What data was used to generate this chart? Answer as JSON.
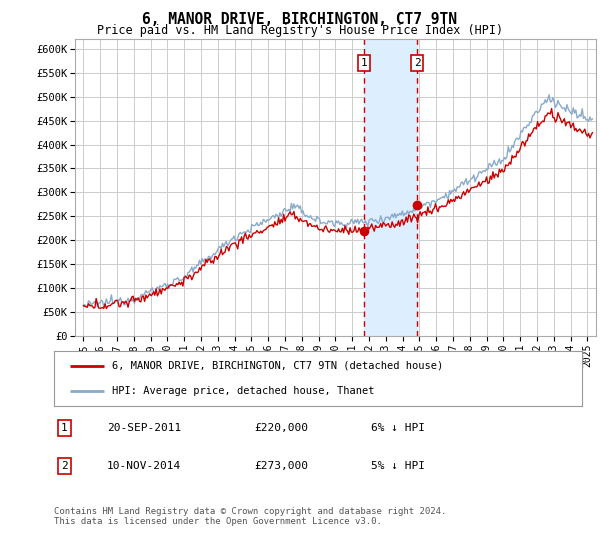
{
  "title": "6, MANOR DRIVE, BIRCHINGTON, CT7 9TN",
  "subtitle": "Price paid vs. HM Land Registry's House Price Index (HPI)",
  "ylabel_ticks": [
    "£0",
    "£50K",
    "£100K",
    "£150K",
    "£200K",
    "£250K",
    "£300K",
    "£350K",
    "£400K",
    "£450K",
    "£500K",
    "£550K",
    "£600K"
  ],
  "ylim": [
    0,
    620000
  ],
  "ytick_values": [
    0,
    50000,
    100000,
    150000,
    200000,
    250000,
    300000,
    350000,
    400000,
    450000,
    500000,
    550000,
    600000
  ],
  "xmin": 1994.5,
  "xmax": 2025.5,
  "sale1_x": 2011.72,
  "sale1_y": 220000,
  "sale2_x": 2014.86,
  "sale2_y": 273000,
  "region_color": "#ddeeff",
  "dashed_color": "#cc0000",
  "red_line_color": "#cc0000",
  "blue_line_color": "#88aacc",
  "legend_line1": "6, MANOR DRIVE, BIRCHINGTON, CT7 9TN (detached house)",
  "legend_line2": "HPI: Average price, detached house, Thanet",
  "note1_date": "20-SEP-2011",
  "note1_price": "£220,000",
  "note1_hpi": "6% ↓ HPI",
  "note2_date": "10-NOV-2014",
  "note2_price": "£273,000",
  "note2_hpi": "5% ↓ HPI",
  "footer": "Contains HM Land Registry data © Crown copyright and database right 2024.\nThis data is licensed under the Open Government Licence v3.0.",
  "background_color": "#ffffff",
  "grid_color": "#cccccc"
}
